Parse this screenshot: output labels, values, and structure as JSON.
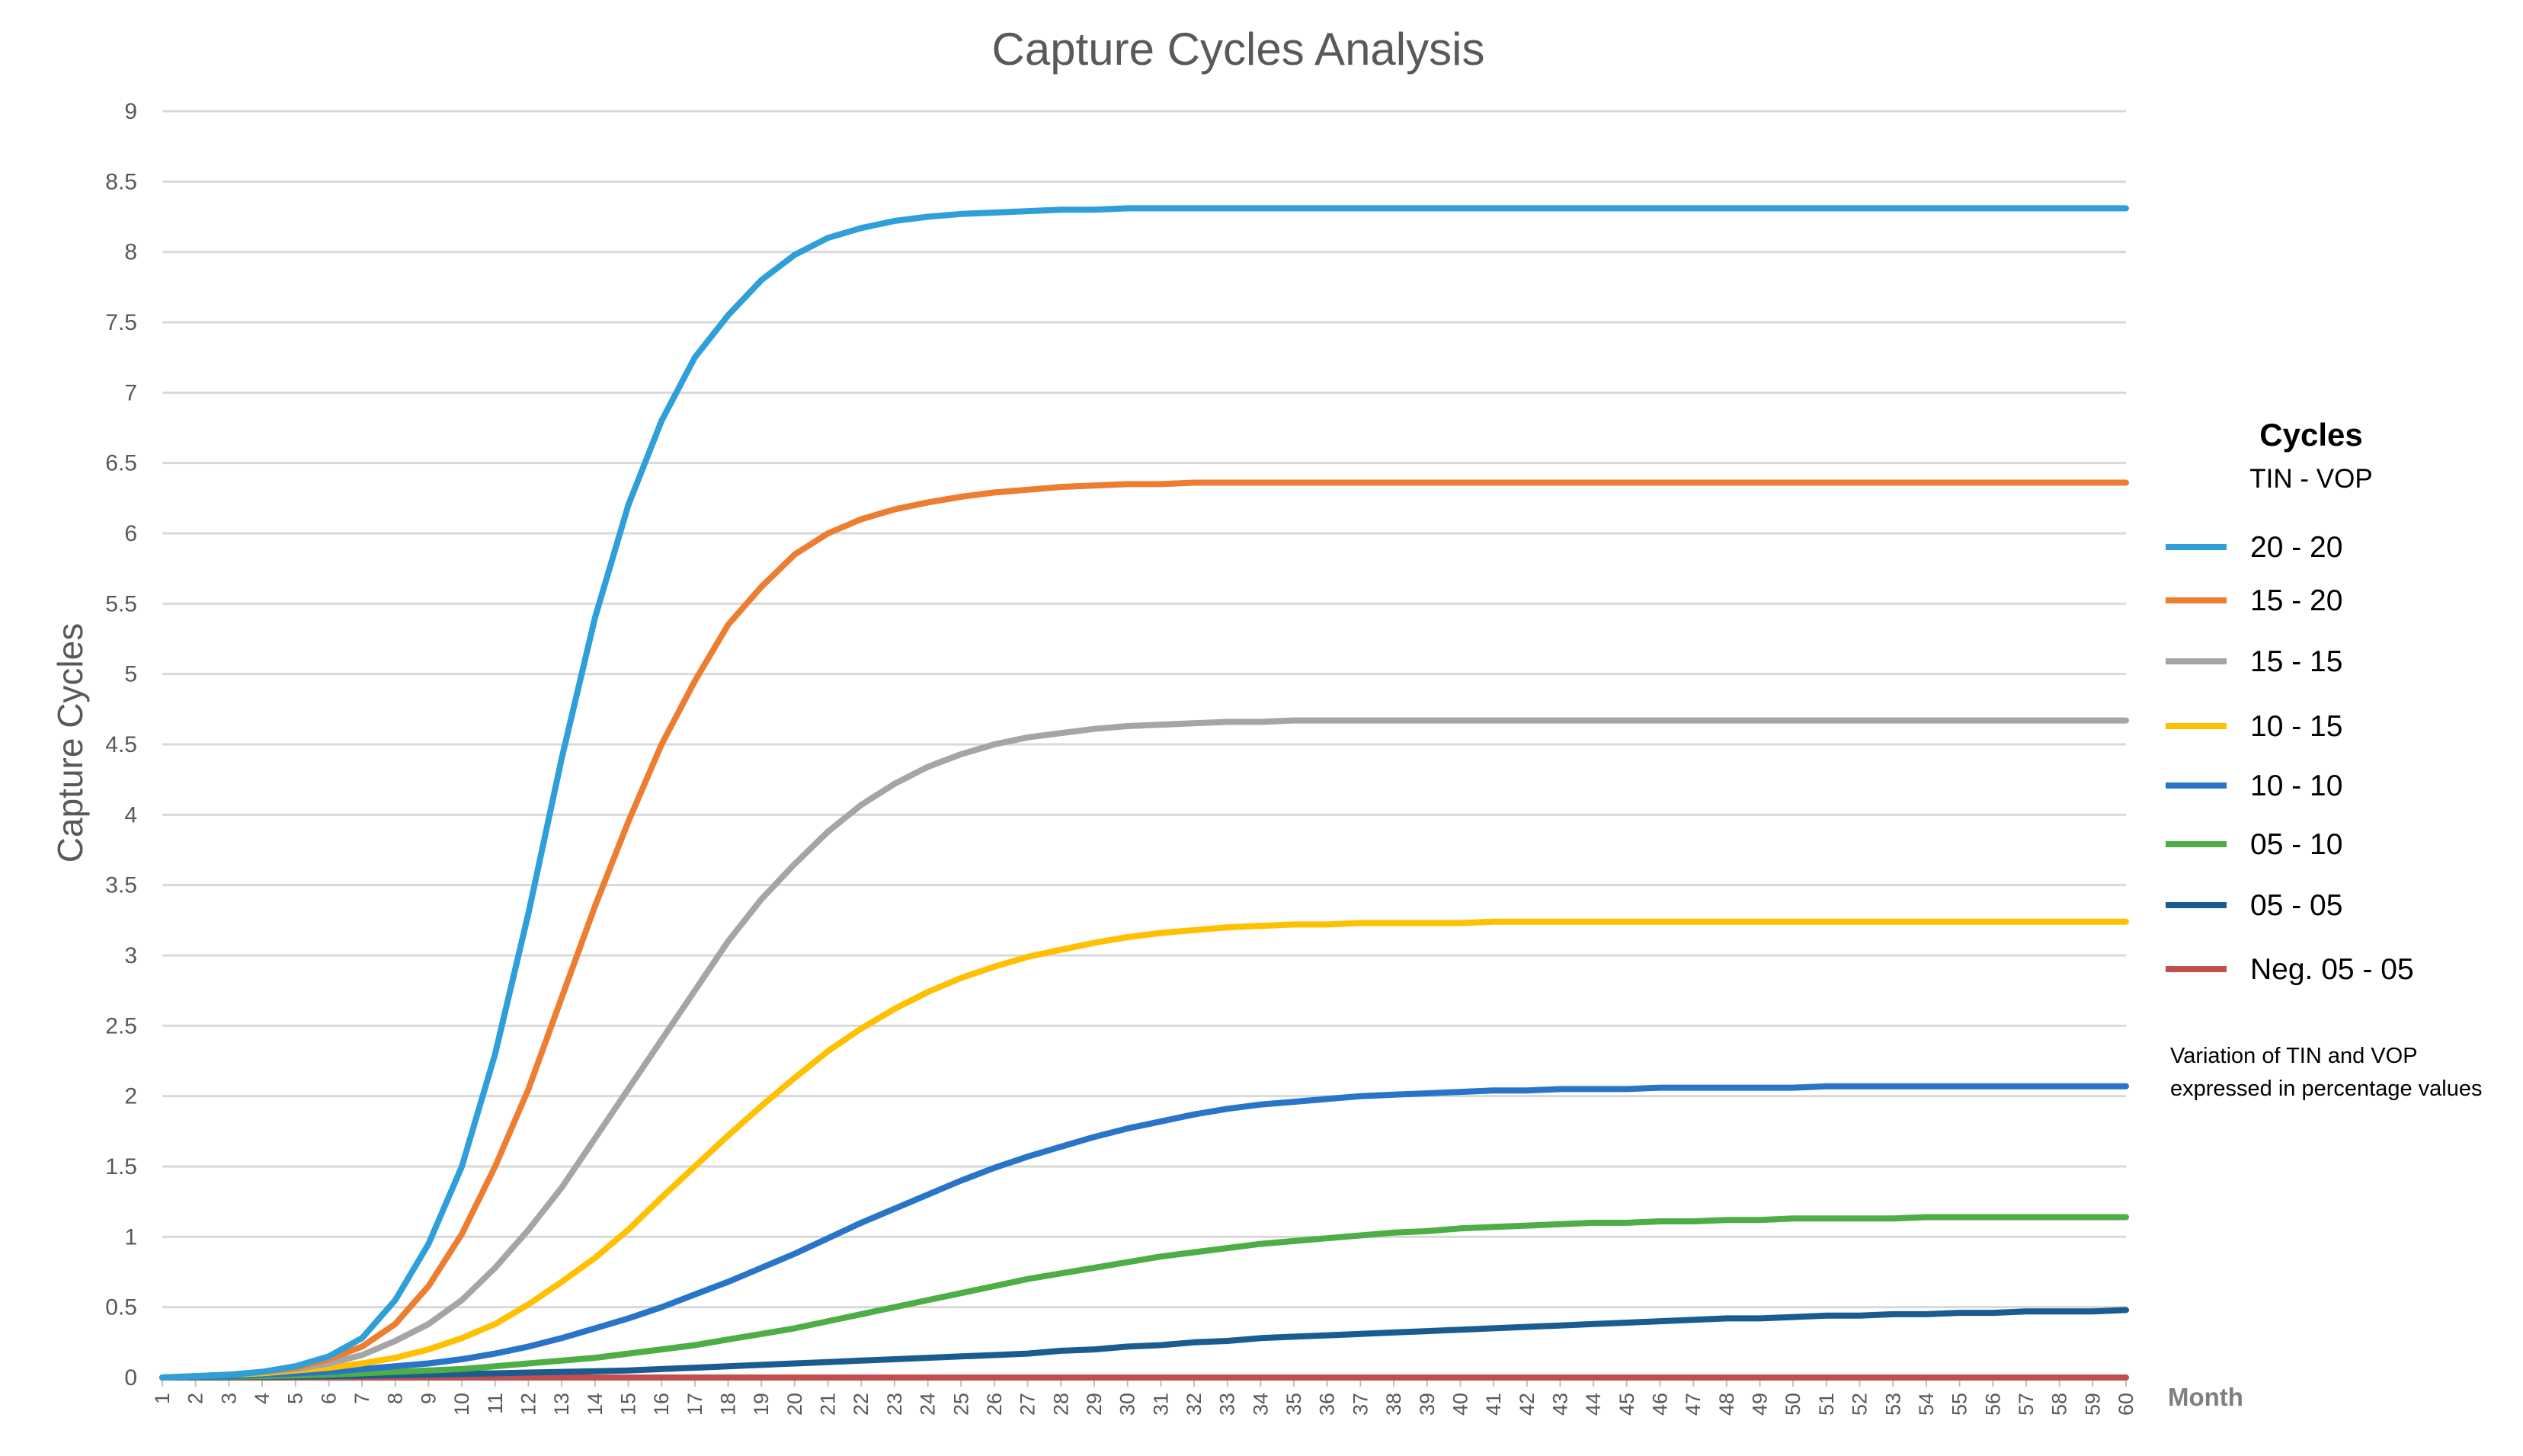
{
  "colors": {
    "series_20_20": "#2e9fd8",
    "series_15_20": "#ed7d31",
    "series_15_15": "#a5a5a5",
    "series_10_15": "#ffc000",
    "series_10_10": "#2874c9",
    "series_05_10": "#4cae45",
    "series_05_05": "#1a5c8f",
    "series_neg_05_05": "#c0504d",
    "grid": "#d9d9d9",
    "text": "#595959"
  },
  "legend": {
    "title": "Cycles",
    "subtitle": "TIN  - VOP",
    "placement": "right"
  },
  "note": {
    "line1": "Variation of TIN and VOP",
    "line2": "expressed in percentage values"
  },
  "chart_data": {
    "type": "line",
    "title": "Capture Cycles Analysis",
    "xlabel": "Month",
    "ylabel": "Capture Cycles",
    "ylim": [
      0,
      9
    ],
    "yticks": [
      "0",
      "0.5",
      "1",
      "1.5",
      "2",
      "2.5",
      "3",
      "3.5",
      "4",
      "4.5",
      "5",
      "5.5",
      "6",
      "6.5",
      "7",
      "7.5",
      "8",
      "8.5",
      "9"
    ],
    "categories": [
      "1",
      "2",
      "3",
      "4",
      "5",
      "6",
      "7",
      "8",
      "9",
      "10",
      "11",
      "12",
      "13",
      "14",
      "15",
      "16",
      "17",
      "18",
      "19",
      "20",
      "21",
      "22",
      "23",
      "24",
      "25",
      "26",
      "27",
      "28",
      "29",
      "30",
      "31",
      "32",
      "33",
      "34",
      "35",
      "36",
      "37",
      "38",
      "39",
      "40",
      "41",
      "42",
      "43",
      "44",
      "45",
      "46",
      "47",
      "48",
      "49",
      "50",
      "51",
      "52",
      "53",
      "54",
      "55",
      "56",
      "57",
      "58",
      "59",
      "60"
    ],
    "grid": true,
    "series": [
      {
        "name": "20 - 20",
        "color_key": "series_20_20",
        "values": [
          0,
          0.01,
          0.02,
          0.04,
          0.08,
          0.15,
          0.28,
          0.55,
          0.95,
          1.5,
          2.3,
          3.3,
          4.4,
          5.4,
          6.2,
          6.8,
          7.25,
          7.55,
          7.8,
          7.98,
          8.1,
          8.17,
          8.22,
          8.25,
          8.27,
          8.28,
          8.29,
          8.3,
          8.3,
          8.31,
          8.31,
          8.31,
          8.31,
          8.31,
          8.31,
          8.31,
          8.31,
          8.31,
          8.31,
          8.31,
          8.31,
          8.31,
          8.31,
          8.31,
          8.31,
          8.31,
          8.31,
          8.31,
          8.31,
          8.31,
          8.31,
          8.31,
          8.31,
          8.31,
          8.31,
          8.31,
          8.31,
          8.31,
          8.31,
          8.31
        ]
      },
      {
        "name": "15 - 20",
        "color_key": "series_15_20",
        "values": [
          0,
          0.01,
          0.02,
          0.04,
          0.07,
          0.13,
          0.22,
          0.38,
          0.65,
          1.02,
          1.5,
          2.05,
          2.7,
          3.35,
          3.95,
          4.5,
          4.95,
          5.35,
          5.62,
          5.85,
          6.0,
          6.1,
          6.17,
          6.22,
          6.26,
          6.29,
          6.31,
          6.33,
          6.34,
          6.35,
          6.35,
          6.36,
          6.36,
          6.36,
          6.36,
          6.36,
          6.36,
          6.36,
          6.36,
          6.36,
          6.36,
          6.36,
          6.36,
          6.36,
          6.36,
          6.36,
          6.36,
          6.36,
          6.36,
          6.36,
          6.36,
          6.36,
          6.36,
          6.36,
          6.36,
          6.36,
          6.36,
          6.36,
          6.36,
          6.36
        ]
      },
      {
        "name": "15 - 15",
        "color_key": "series_15_15",
        "values": [
          0,
          0.01,
          0.02,
          0.04,
          0.06,
          0.1,
          0.16,
          0.26,
          0.38,
          0.55,
          0.78,
          1.05,
          1.35,
          1.7,
          2.05,
          2.4,
          2.75,
          3.1,
          3.4,
          3.65,
          3.88,
          4.07,
          4.22,
          4.34,
          4.43,
          4.5,
          4.55,
          4.58,
          4.61,
          4.63,
          4.64,
          4.65,
          4.66,
          4.66,
          4.67,
          4.67,
          4.67,
          4.67,
          4.67,
          4.67,
          4.67,
          4.67,
          4.67,
          4.67,
          4.67,
          4.67,
          4.67,
          4.67,
          4.67,
          4.67,
          4.67,
          4.67,
          4.67,
          4.67,
          4.67,
          4.67,
          4.67,
          4.67,
          4.67,
          4.67
        ]
      },
      {
        "name": "10 - 15",
        "color_key": "series_10_15",
        "values": [
          0,
          0.01,
          0.02,
          0.03,
          0.05,
          0.07,
          0.1,
          0.14,
          0.2,
          0.28,
          0.38,
          0.52,
          0.68,
          0.85,
          1.05,
          1.28,
          1.5,
          1.72,
          1.93,
          2.13,
          2.32,
          2.48,
          2.62,
          2.74,
          2.84,
          2.92,
          2.99,
          3.04,
          3.09,
          3.13,
          3.16,
          3.18,
          3.2,
          3.21,
          3.22,
          3.22,
          3.23,
          3.23,
          3.23,
          3.23,
          3.24,
          3.24,
          3.24,
          3.24,
          3.24,
          3.24,
          3.24,
          3.24,
          3.24,
          3.24,
          3.24,
          3.24,
          3.24,
          3.24,
          3.24,
          3.24,
          3.24,
          3.24,
          3.24,
          3.24
        ]
      },
      {
        "name": "10 - 10",
        "color_key": "series_10_10",
        "values": [
          0,
          0.005,
          0.01,
          0.02,
          0.03,
          0.04,
          0.06,
          0.08,
          0.1,
          0.13,
          0.17,
          0.22,
          0.28,
          0.35,
          0.42,
          0.5,
          0.59,
          0.68,
          0.78,
          0.88,
          0.99,
          1.1,
          1.2,
          1.3,
          1.4,
          1.49,
          1.57,
          1.64,
          1.71,
          1.77,
          1.82,
          1.87,
          1.91,
          1.94,
          1.96,
          1.98,
          2.0,
          2.01,
          2.02,
          2.03,
          2.04,
          2.04,
          2.05,
          2.05,
          2.05,
          2.06,
          2.06,
          2.06,
          2.06,
          2.06,
          2.07,
          2.07,
          2.07,
          2.07,
          2.07,
          2.07,
          2.07,
          2.07,
          2.07,
          2.07
        ]
      },
      {
        "name": "05 - 10",
        "color_key": "series_05_10",
        "values": [
          0,
          0.003,
          0.006,
          0.01,
          0.015,
          0.02,
          0.03,
          0.04,
          0.05,
          0.06,
          0.08,
          0.1,
          0.12,
          0.14,
          0.17,
          0.2,
          0.23,
          0.27,
          0.31,
          0.35,
          0.4,
          0.45,
          0.5,
          0.55,
          0.6,
          0.65,
          0.7,
          0.74,
          0.78,
          0.82,
          0.86,
          0.89,
          0.92,
          0.95,
          0.97,
          0.99,
          1.01,
          1.03,
          1.04,
          1.06,
          1.07,
          1.08,
          1.09,
          1.1,
          1.1,
          1.11,
          1.11,
          1.12,
          1.12,
          1.13,
          1.13,
          1.13,
          1.13,
          1.14,
          1.14,
          1.14,
          1.14,
          1.14,
          1.14,
          1.14
        ]
      },
      {
        "name": "05 - 05",
        "color_key": "series_05_05",
        "values": [
          0,
          0.002,
          0.004,
          0.006,
          0.008,
          0.01,
          0.013,
          0.016,
          0.02,
          0.025,
          0.03,
          0.035,
          0.04,
          0.045,
          0.05,
          0.06,
          0.07,
          0.08,
          0.09,
          0.1,
          0.11,
          0.12,
          0.13,
          0.14,
          0.15,
          0.16,
          0.17,
          0.19,
          0.2,
          0.22,
          0.23,
          0.25,
          0.26,
          0.28,
          0.29,
          0.3,
          0.31,
          0.32,
          0.33,
          0.34,
          0.35,
          0.36,
          0.37,
          0.38,
          0.39,
          0.4,
          0.41,
          0.42,
          0.42,
          0.43,
          0.44,
          0.44,
          0.45,
          0.45,
          0.46,
          0.46,
          0.47,
          0.47,
          0.47,
          0.48
        ]
      },
      {
        "name": "Neg. 05 - 05",
        "color_key": "series_neg_05_05",
        "values": [
          0,
          0,
          0,
          0,
          0,
          0,
          0,
          0,
          0,
          0,
          0,
          0,
          0,
          0,
          0,
          0,
          0,
          0,
          0,
          0,
          0,
          0,
          0,
          0,
          0,
          0,
          0,
          0,
          0,
          0,
          0,
          0,
          0,
          0,
          0,
          0,
          0,
          0,
          0,
          0,
          0,
          0,
          0,
          0,
          0,
          0,
          0,
          0,
          0,
          0,
          0,
          0,
          0,
          0,
          0,
          0,
          0,
          0,
          0,
          0
        ]
      }
    ]
  }
}
